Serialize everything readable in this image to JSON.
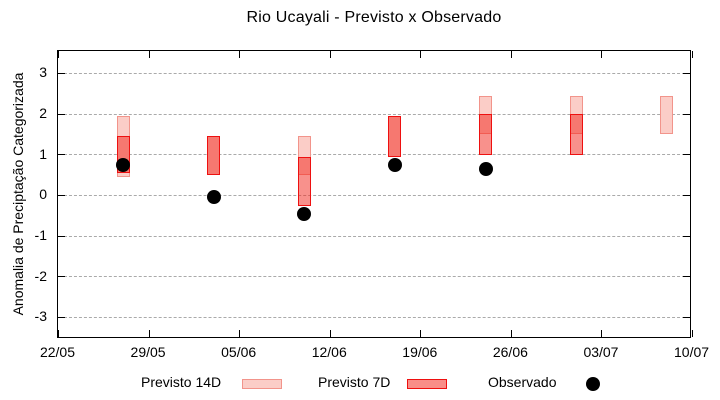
{
  "title": "Rio Ucayali - Previsto x Observado",
  "legend": {
    "items": [
      {
        "label": "Previsto 14D",
        "swatch": "pink-box"
      },
      {
        "label": "Previsto 7D",
        "swatch": "red-box"
      },
      {
        "label": "Observado",
        "swatch": "black-dot"
      }
    ],
    "position": "below-chart"
  },
  "colors": {
    "p14_fill": "#fbcdc7",
    "p14_border": "#f2948b",
    "p7_fill": "rgba(242,35,25,0.5)",
    "p7_border": "#ee1010",
    "p7_legend_fill": "#f98e88",
    "observed": "#000000",
    "grid": "#aaaaaa",
    "axis": "#000000",
    "background": "#ffffff"
  },
  "chart_data": {
    "type": "range-bar+scatter",
    "title": "Rio Ucayali - Previsto x Observado",
    "xlabel": "",
    "ylabel": "Anomalia de Preciptação Categorizada",
    "x_tick_labels": [
      "22/05",
      "29/05",
      "05/06",
      "12/06",
      "19/06",
      "26/06",
      "03/07",
      "10/07"
    ],
    "y_ticks": [
      3,
      2,
      1,
      0,
      -1,
      -2,
      -3
    ],
    "ylim": [
      -3.55,
      3.55
    ],
    "grid": "horizontal-dashed",
    "legend_position": "below",
    "categories": [
      "27/05",
      "03/06",
      "10/06",
      "17/06",
      "24/06",
      "01/07",
      "08/07"
    ],
    "x_days_from_start": [
      5,
      12,
      19,
      26,
      33,
      40,
      47
    ],
    "series": [
      {
        "name": "Previsto 14D",
        "type": "range_bar",
        "style": "light-pink-box",
        "ranges": [
          [
            0.45,
            1.95
          ],
          [
            0.5,
            1.45
          ],
          [
            0.5,
            1.45
          ],
          [
            0.95,
            1.95
          ],
          [
            1.5,
            2.45
          ],
          [
            1.5,
            2.45
          ],
          [
            1.5,
            2.45
          ]
        ]
      },
      {
        "name": "Previsto 7D",
        "type": "range_bar",
        "style": "red-box",
        "ranges": [
          [
            0.55,
            1.45
          ],
          [
            0.5,
            1.45
          ],
          [
            -0.25,
            0.95
          ],
          [
            0.95,
            1.95
          ],
          [
            1.0,
            2.0
          ],
          [
            1.0,
            2.0
          ],
          null
        ]
      },
      {
        "name": "Observado",
        "type": "scatter",
        "style": "black-filled-circle",
        "values": [
          0.75,
          -0.05,
          -0.45,
          0.75,
          0.65,
          null,
          null
        ]
      }
    ]
  }
}
